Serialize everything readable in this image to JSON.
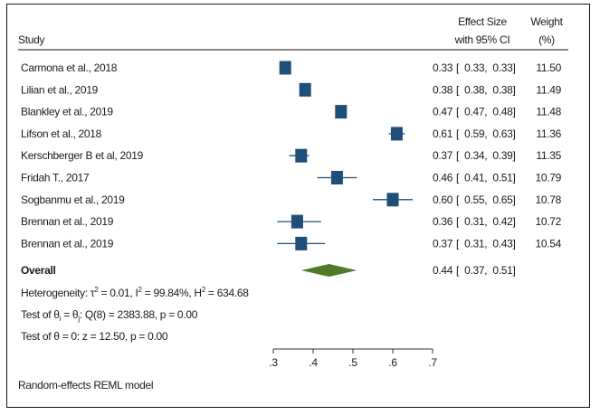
{
  "chart_data": {
    "type": "forest",
    "model_note": "Random-effects REML model",
    "headers": {
      "study": "Study",
      "effect_line1": "Effect Size",
      "effect_line2": "with 95% CI",
      "weight_line1": "Weight",
      "weight_line2": "(%)"
    },
    "studies": [
      {
        "name": "Carmona et al., 2018",
        "es": 0.33,
        "lo": 0.33,
        "hi": 0.33,
        "es_text": "0.33",
        "ci_text": "[  0.33,  0.33]",
        "weight": "11.50"
      },
      {
        "name": "Lilian et al., 2019",
        "es": 0.38,
        "lo": 0.38,
        "hi": 0.38,
        "es_text": "0.38",
        "ci_text": "[  0.38,  0.38]",
        "weight": "11.49"
      },
      {
        "name": "Blankley et al., 2019",
        "es": 0.47,
        "lo": 0.47,
        "hi": 0.48,
        "es_text": "0.47",
        "ci_text": "[  0.47,  0.48]",
        "weight": "11.48"
      },
      {
        "name": "Lifson et al., 2018",
        "es": 0.61,
        "lo": 0.59,
        "hi": 0.63,
        "es_text": "0.61",
        "ci_text": "[  0.59,  0.63]",
        "weight": "11.36"
      },
      {
        "name": "Kerschberger B et al, 2019",
        "es": 0.37,
        "lo": 0.34,
        "hi": 0.39,
        "es_text": "0.37",
        "ci_text": "[  0.34,  0.39]",
        "weight": "11.35"
      },
      {
        "name": "Fridah T., 2017",
        "es": 0.46,
        "lo": 0.41,
        "hi": 0.51,
        "es_text": "0.46",
        "ci_text": "[  0.41,  0.51]",
        "weight": "10.79"
      },
      {
        "name": "Sogbanmu et al., 2019",
        "es": 0.6,
        "lo": 0.55,
        "hi": 0.65,
        "es_text": "0.60",
        "ci_text": "[  0.55,  0.65]",
        "weight": "10.78"
      },
      {
        "name": "Brennan et al., 2019",
        "es": 0.36,
        "lo": 0.31,
        "hi": 0.42,
        "es_text": "0.36",
        "ci_text": "[  0.31,  0.42]",
        "weight": "10.72"
      },
      {
        "name": "Brennan et al., 2019",
        "es": 0.37,
        "lo": 0.31,
        "hi": 0.43,
        "es_text": "0.37",
        "ci_text": "[  0.31,  0.43]",
        "weight": "10.54"
      }
    ],
    "overall": {
      "label": "Overall",
      "es": 0.44,
      "lo": 0.37,
      "hi": 0.51,
      "es_text": "0.44",
      "ci_text": "[  0.37,  0.51]"
    },
    "stats": [
      "Heterogeneity: τ² = 0.01, I² = 99.84%, H² = 634.68",
      "Test of θi = θj: Q(8) = 2383.88, p = 0.00",
      "Test of θ = 0: z = 12.50, p = 0.00"
    ],
    "xaxis": {
      "range": [
        0.3,
        0.7
      ],
      "ticks": [
        0.3,
        0.4,
        0.5,
        0.6,
        0.7
      ],
      "tick_labels": [
        ".3",
        ".4",
        ".5",
        ".6",
        ".7"
      ]
    },
    "colors": {
      "marker": "#1f4e79",
      "ci_line": "#1f4e79",
      "diamond": "#4f7a28",
      "text": "#1a1a1a"
    }
  }
}
